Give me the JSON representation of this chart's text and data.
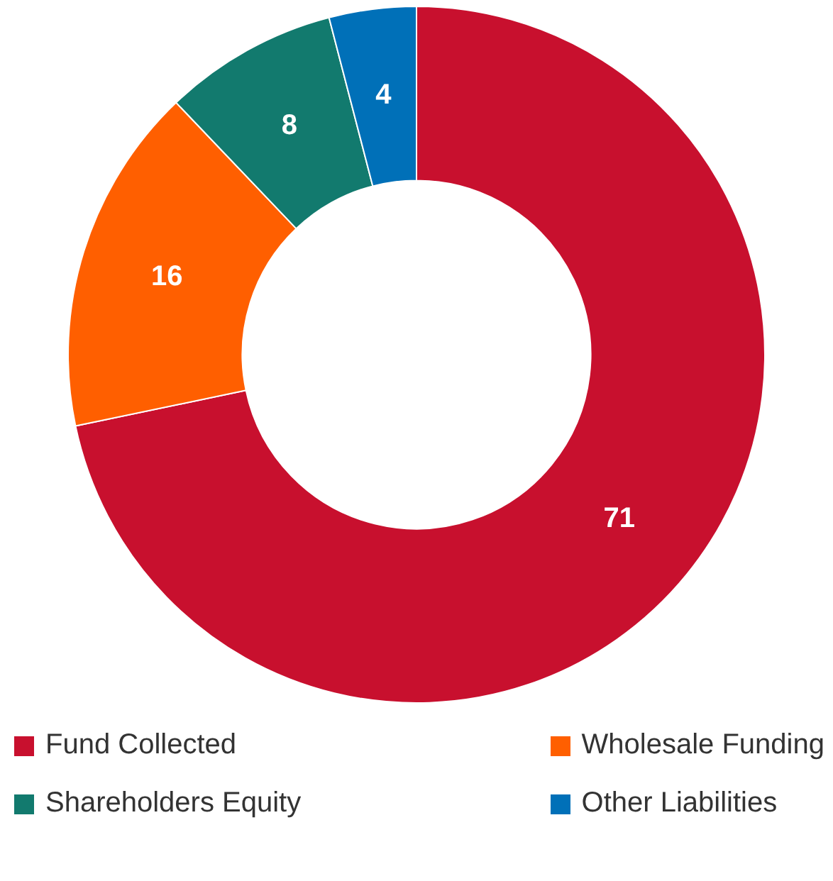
{
  "chart_data": {
    "type": "donut",
    "categories": [
      "Fund Collected",
      "Wholesale Funding",
      "Shareholders Equity",
      "Other Liabilities"
    ],
    "values": [
      71,
      16,
      8,
      4
    ],
    "colors": [
      "#c8102e",
      "#ff5f00",
      "#127a6e",
      "#0070b8"
    ],
    "data_labels": true,
    "legend": "bottom"
  }
}
